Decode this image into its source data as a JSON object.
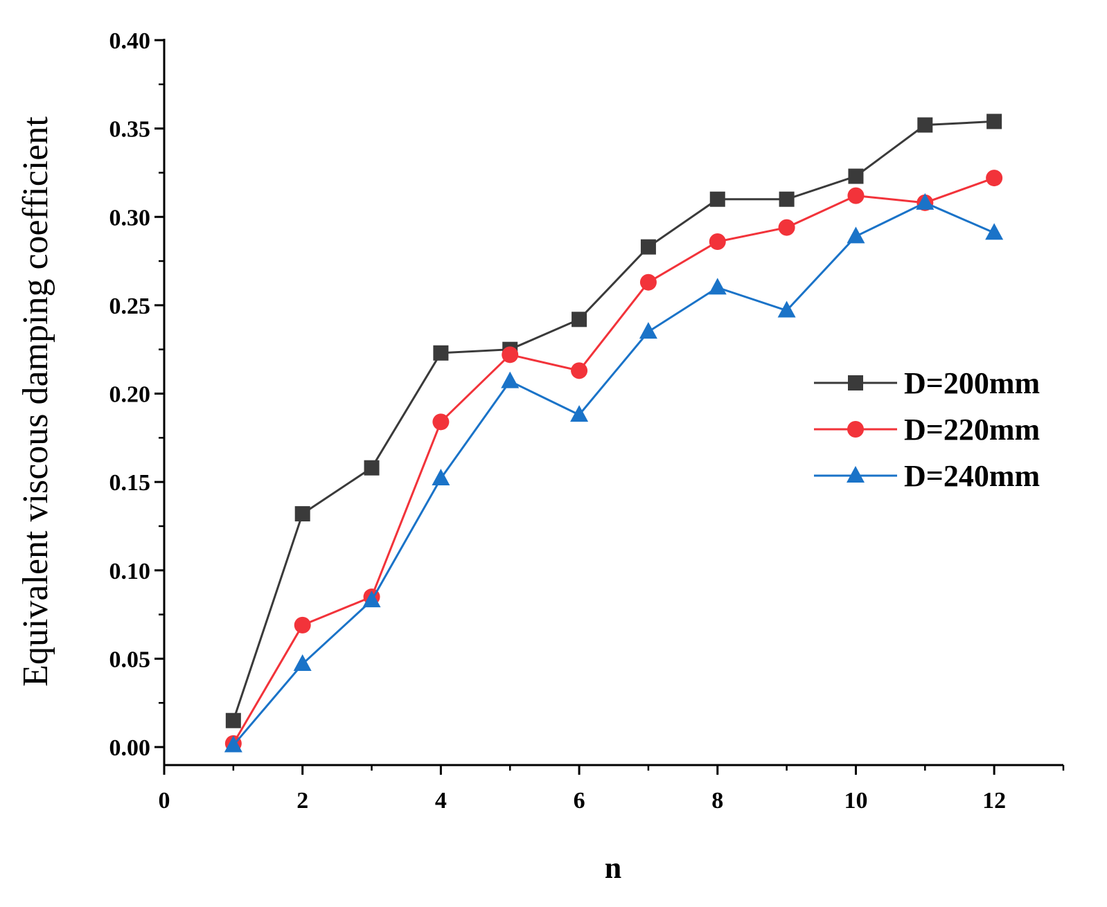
{
  "chart_data": {
    "type": "line",
    "title": "",
    "xlabel": "n",
    "ylabel": "Equivalent viscous damping coefficient",
    "xlim": [
      0,
      13
    ],
    "ylim": [
      0,
      0.4
    ],
    "x_ticks": [
      0,
      2,
      4,
      6,
      8,
      10,
      12
    ],
    "x_tick_labels": [
      "0",
      "2",
      "4",
      "6",
      "8",
      "10",
      "12"
    ],
    "y_ticks": [
      0,
      0.05,
      0.1,
      0.15,
      0.2,
      0.25,
      0.3,
      0.35,
      0.4
    ],
    "y_tick_labels": [
      "0.00",
      "0.05",
      "0.10",
      "0.15",
      "0.20",
      "0.25",
      "0.30",
      "0.35",
      "0.40"
    ],
    "grid": false,
    "legend_position": "right",
    "x": [
      1,
      2,
      3,
      4,
      5,
      6,
      7,
      8,
      9,
      10,
      11,
      12
    ],
    "series": [
      {
        "name": "D=200mm",
        "color": "#3a3a3a",
        "marker": "square",
        "values": [
          0.015,
          0.132,
          0.158,
          0.223,
          0.225,
          0.242,
          0.283,
          0.31,
          0.31,
          0.323,
          0.352,
          0.354
        ]
      },
      {
        "name": "D=220mm",
        "color": "#f2333a",
        "marker": "circle",
        "values": [
          0.002,
          0.069,
          0.085,
          0.184,
          0.222,
          0.213,
          0.263,
          0.286,
          0.294,
          0.312,
          0.308,
          0.322
        ]
      },
      {
        "name": "D=240mm",
        "color": "#1a73c8",
        "marker": "triangle",
        "values": [
          0.001,
          0.047,
          0.083,
          0.152,
          0.207,
          0.188,
          0.235,
          0.26,
          0.247,
          0.289,
          0.308,
          0.291
        ]
      }
    ]
  }
}
